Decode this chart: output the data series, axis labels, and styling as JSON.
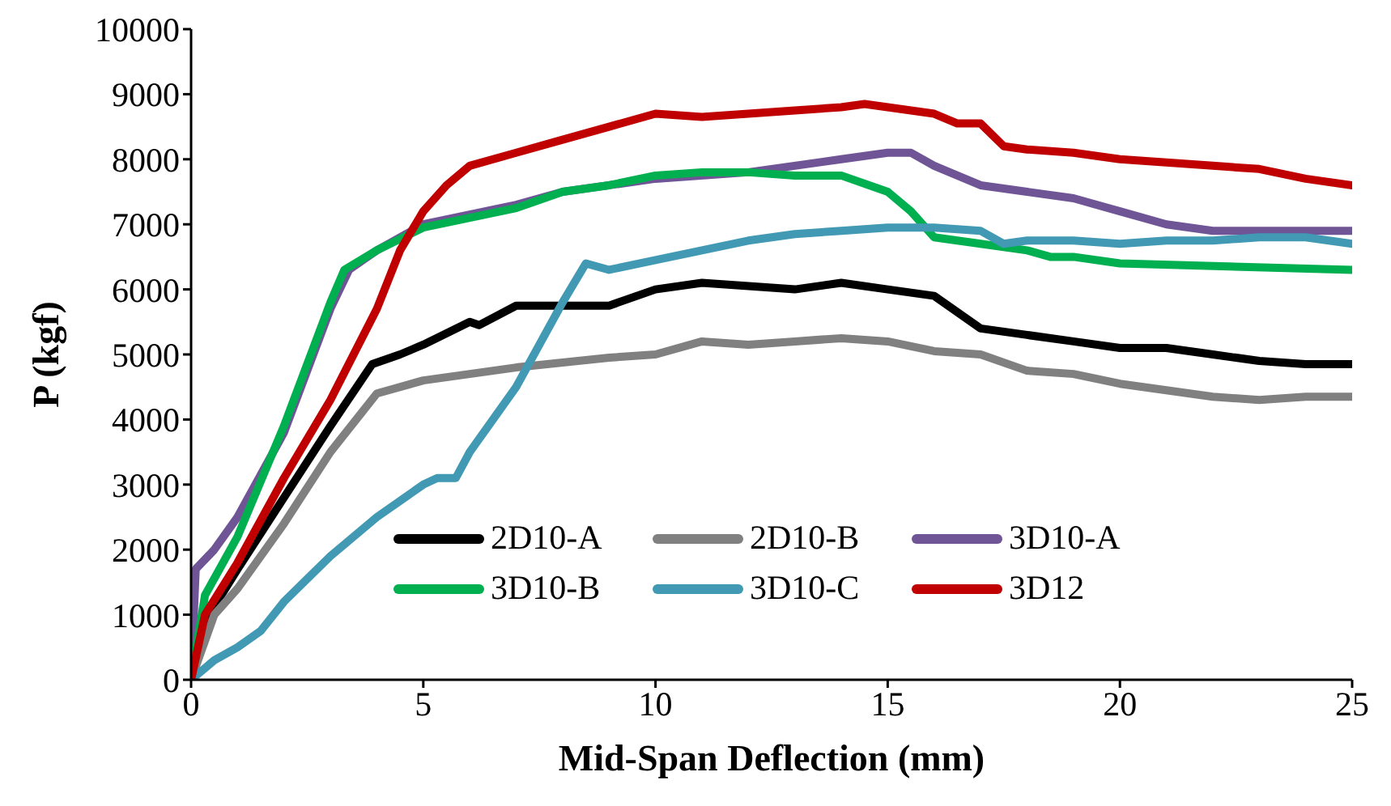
{
  "chart_data": {
    "type": "line",
    "xlabel": "Mid-Span Deflection (mm)",
    "ylabel": "P (kgf)",
    "xlim": [
      0,
      25
    ],
    "xticks": [
      0,
      5,
      10,
      15,
      20,
      25
    ],
    "ylim": [
      0,
      10000
    ],
    "yticks": [
      0,
      1000,
      2000,
      3000,
      4000,
      5000,
      6000,
      7000,
      8000,
      9000,
      10000
    ],
    "grid": false,
    "legend": "bottom right",
    "marker": "none",
    "line_style": "solid",
    "series": [
      {
        "name": "2D10-A",
        "color": "#000000",
        "x": [
          0,
          0.3,
          1,
          2,
          3,
          3.9,
          4.5,
          5,
          6,
          6.2,
          7,
          9,
          10,
          11,
          13,
          14,
          15,
          16,
          17,
          18,
          19,
          20,
          21,
          22,
          23,
          24,
          25
        ],
        "values": [
          0,
          900,
          1700,
          2800,
          3900,
          4850,
          5000,
          5150,
          5500,
          5450,
          5750,
          5750,
          6000,
          6100,
          6000,
          6100,
          6000,
          5900,
          5400,
          5300,
          5200,
          5100,
          5100,
          5000,
          4900,
          4850,
          4850
        ]
      },
      {
        "name": "2D10-B",
        "color": "#808080",
        "x": [
          0,
          0.5,
          1,
          2,
          3,
          4,
          5,
          7,
          9,
          10,
          11,
          12,
          13,
          14,
          15,
          16,
          17,
          18,
          19,
          20,
          21,
          22,
          23,
          24,
          25
        ],
        "values": [
          0,
          1000,
          1400,
          2400,
          3500,
          4400,
          4600,
          4800,
          4950,
          5000,
          5200,
          5150,
          5200,
          5250,
          5200,
          5050,
          5000,
          4750,
          4700,
          4550,
          4450,
          4350,
          4300,
          4350,
          4350
        ]
      },
      {
        "name": "3D10-A",
        "color": "#6f5596",
        "x": [
          0,
          0.1,
          0.5,
          1,
          2,
          3,
          3.4,
          4,
          5,
          6,
          7,
          8,
          10,
          12,
          14,
          15,
          15.5,
          16,
          17,
          18,
          19,
          20,
          21,
          22,
          23,
          24,
          25
        ],
        "values": [
          0,
          1700,
          2000,
          2500,
          3800,
          5700,
          6300,
          6600,
          7000,
          7150,
          7300,
          7500,
          7700,
          7800,
          8000,
          8100,
          8100,
          7900,
          7600,
          7500,
          7400,
          7200,
          7000,
          6900,
          6900,
          6900,
          6900
        ]
      },
      {
        "name": "3D10-B",
        "color": "#00b050",
        "x": [
          0,
          0.3,
          1,
          2,
          3,
          3.3,
          4,
          5,
          6,
          7,
          8,
          9,
          10,
          11,
          12,
          13,
          14,
          15,
          15.5,
          16,
          17,
          18,
          18.5,
          19,
          20,
          25
        ],
        "values": [
          0,
          1300,
          2200,
          3900,
          5800,
          6300,
          6600,
          6950,
          7100,
          7250,
          7500,
          7600,
          7750,
          7800,
          7800,
          7750,
          7750,
          7500,
          7200,
          6800,
          6700,
          6600,
          6500,
          6500,
          6400,
          6300
        ]
      },
      {
        "name": "3D10-C",
        "color": "#4199b3",
        "x": [
          0,
          0.5,
          1,
          1.5,
          2,
          3,
          4,
          5,
          5.3,
          5.7,
          6,
          7,
          8,
          8.5,
          9,
          10,
          11,
          12,
          13,
          14,
          15,
          16,
          17,
          17.5,
          18,
          19,
          20,
          21,
          22,
          23,
          24,
          25
        ],
        "values": [
          0,
          300,
          500,
          750,
          1200,
          1900,
          2500,
          3000,
          3100,
          3100,
          3500,
          4500,
          5800,
          6400,
          6300,
          6450,
          6600,
          6750,
          6850,
          6900,
          6950,
          6950,
          6900,
          6700,
          6750,
          6750,
          6700,
          6750,
          6750,
          6800,
          6800,
          6700
        ]
      },
      {
        "name": "3D12",
        "color": "#c00000",
        "x": [
          0,
          0.3,
          1,
          2,
          3,
          4,
          4.5,
          5,
          5.5,
          6,
          7,
          8,
          9,
          10,
          11,
          12,
          13,
          14,
          14.5,
          15,
          16,
          16.5,
          17,
          17.5,
          18,
          19,
          20,
          21,
          22,
          23,
          24,
          25
        ],
        "values": [
          0,
          1000,
          1800,
          3100,
          4300,
          5700,
          6600,
          7200,
          7600,
          7900,
          8100,
          8300,
          8500,
          8700,
          8650,
          8700,
          8750,
          8800,
          8850,
          8800,
          8700,
          8550,
          8550,
          8200,
          8150,
          8100,
          8000,
          7950,
          7900,
          7850,
          7700,
          7600
        ]
      }
    ]
  }
}
